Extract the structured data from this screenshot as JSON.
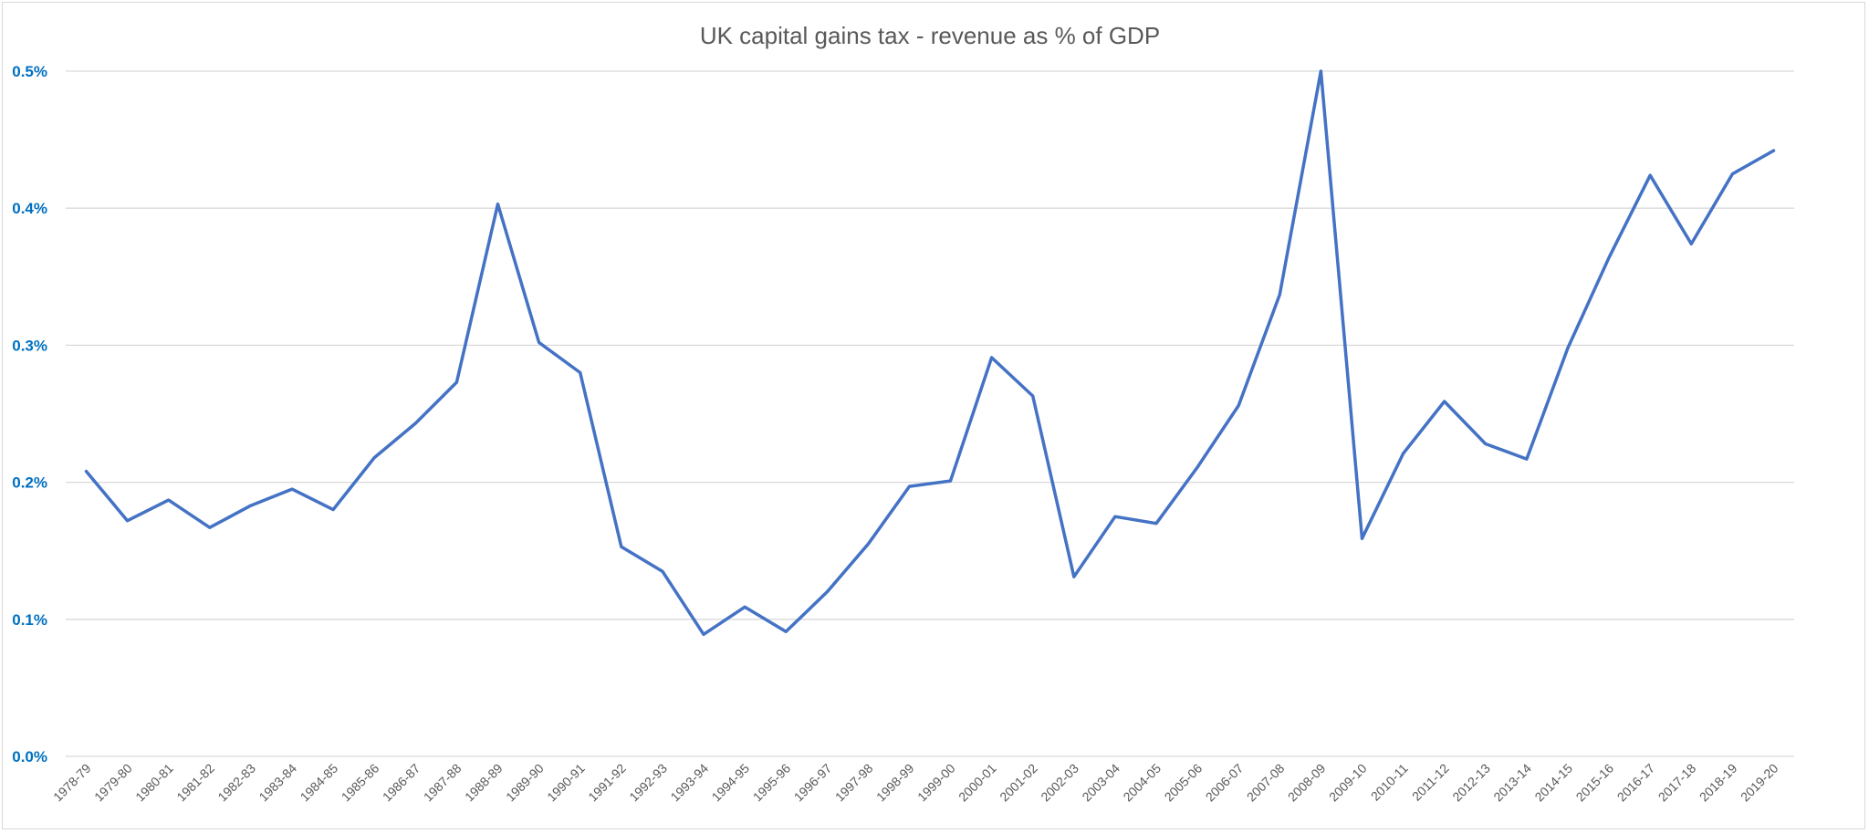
{
  "chart_data": {
    "type": "line",
    "title": "UK capital gains tax - revenue as % of GDP",
    "xlabel": "",
    "ylabel": "",
    "ylim": [
      0,
      0.5
    ],
    "y_ticks": [
      "0.0%",
      "0.1%",
      "0.2%",
      "0.3%",
      "0.4%",
      "0.5%"
    ],
    "y_tick_values": [
      0,
      0.1,
      0.2,
      0.3,
      0.4,
      0.5
    ],
    "grid": "horizontal",
    "legend": "none",
    "colors": {
      "line": "#4472C4",
      "ytick": "#0070C0",
      "xtick": "#595959",
      "title": "#595959",
      "grid": "#d9d9d9"
    },
    "categories": [
      "1978-79",
      "1979-80",
      "1980-81",
      "1981-82",
      "1982-83",
      "1983-84",
      "1984-85",
      "1985-86",
      "1986-87",
      "1987-88",
      "1988-89",
      "1989-90",
      "1990-91",
      "1991-92",
      "1992-93",
      "1993-94",
      "1994-95",
      "1995-96",
      "1996-97",
      "1997-98",
      "1998-99",
      "1999-00",
      "2000-01",
      "2001-02",
      "2002-03",
      "2003-04",
      "2004-05",
      "2005-06",
      "2006-07",
      "2007-08",
      "2008-09",
      "2009-10",
      "2010-11",
      "2011-12",
      "2012-13",
      "2013-14",
      "2014-15",
      "2015-16",
      "2016-17",
      "2017-18",
      "2018-19",
      "2019-20"
    ],
    "values": [
      0.208,
      0.172,
      0.187,
      0.167,
      0.183,
      0.195,
      0.18,
      0.218,
      0.243,
      0.273,
      0.403,
      0.302,
      0.28,
      0.153,
      0.135,
      0.089,
      0.109,
      0.091,
      0.12,
      0.155,
      0.197,
      0.201,
      0.291,
      0.263,
      0.131,
      0.175,
      0.17,
      0.211,
      0.256,
      0.337,
      0.5,
      0.159,
      0.221,
      0.259,
      0.228,
      0.217,
      0.298,
      0.364,
      0.424,
      0.374,
      0.425,
      0.442
    ]
  }
}
